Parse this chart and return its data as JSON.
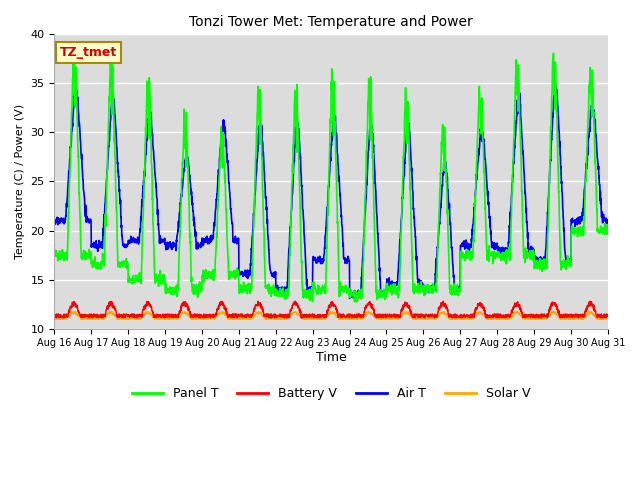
{
  "title": "Tonzi Tower Met: Temperature and Power",
  "xlabel": "Time",
  "ylabel": "Temperature (C) / Power (V)",
  "ylim": [
    10,
    40
  ],
  "annotation": "TZ_tmet",
  "bg_color": "#dcdcdc",
  "fig_color": "#ffffff",
  "xtick_labels": [
    "Aug 16",
    "Aug 17",
    "Aug 18",
    "Aug 19",
    "Aug 20",
    "Aug 21",
    "Aug 22",
    "Aug 23",
    "Aug 24",
    "Aug 25",
    "Aug 26",
    "Aug 27",
    "Aug 28",
    "Aug 29",
    "Aug 30",
    "Aug 31"
  ],
  "series": {
    "Panel T": {
      "color": "#00ff00",
      "lw": 1.2
    },
    "Battery V": {
      "color": "#ff0000",
      "lw": 1.0
    },
    "Air T": {
      "color": "#0000ff",
      "lw": 1.2
    },
    "Solar V": {
      "color": "#ffaa00",
      "lw": 1.0
    }
  }
}
